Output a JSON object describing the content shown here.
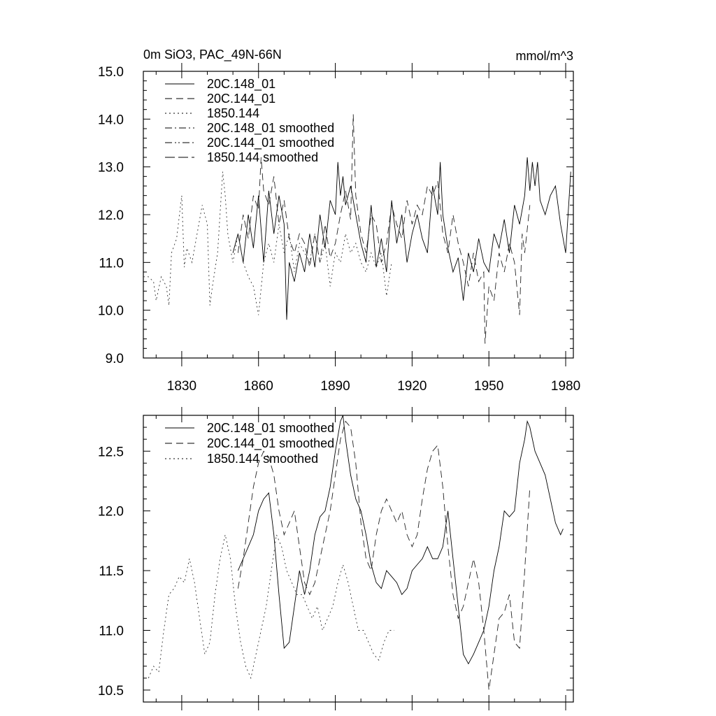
{
  "chart_data": [
    {
      "type": "line",
      "title": "0m SiO3, PAC_49N-66N",
      "units": "mmol/m^3",
      "xlim": [
        1815,
        1983
      ],
      "ylim": [
        9.0,
        15.0
      ],
      "x_ticks": [
        1830,
        1860,
        1890,
        1920,
        1950,
        1980
      ],
      "y_ticks": [
        9.0,
        10.0,
        11.0,
        12.0,
        13.0,
        14.0,
        15.0
      ],
      "y_tick_labels": [
        "9.0",
        "10.0",
        "11.0",
        "12.0",
        "13.0",
        "14.0",
        "15.0"
      ],
      "legend_position": "top-left",
      "series": [
        {
          "name": "20C.148_01",
          "style": "solid",
          "x": [
            1850,
            1852,
            1854,
            1856,
            1858,
            1860,
            1862,
            1864,
            1866,
            1868,
            1870,
            1871,
            1872,
            1874,
            1876,
            1878,
            1880,
            1882,
            1884,
            1886,
            1888,
            1890,
            1891,
            1892,
            1893,
            1894,
            1896,
            1898,
            1900,
            1902,
            1904,
            1906,
            1908,
            1910,
            1912,
            1914,
            1916,
            1918,
            1920,
            1922,
            1924,
            1926,
            1928,
            1930,
            1931,
            1932,
            1934,
            1936,
            1938,
            1940,
            1942,
            1944,
            1946,
            1948,
            1950,
            1952,
            1954,
            1956,
            1958,
            1960,
            1962,
            1964,
            1965,
            1966,
            1967,
            1968,
            1969,
            1970,
            1972,
            1974,
            1976,
            1978,
            1980,
            1982
          ],
          "values": [
            11.2,
            11.6,
            11.0,
            12.0,
            11.3,
            12.4,
            11.0,
            12.5,
            11.6,
            12.4,
            11.8,
            9.8,
            11.0,
            10.6,
            11.2,
            10.8,
            11.6,
            10.9,
            12.0,
            11.3,
            12.3,
            12.0,
            13.1,
            12.4,
            12.8,
            12.2,
            12.6,
            12.0,
            11.4,
            11.0,
            12.2,
            10.9,
            11.5,
            10.8,
            12.3,
            11.4,
            12.0,
            11.0,
            11.6,
            12.0,
            11.5,
            11.2,
            12.6,
            12.0,
            13.1,
            12.0,
            11.3,
            10.8,
            11.1,
            10.2,
            11.2,
            10.8,
            11.5,
            11.0,
            10.8,
            11.6,
            11.3,
            11.9,
            11.2,
            12.2,
            11.8,
            12.4,
            13.2,
            12.5,
            13.1,
            12.6,
            13.1,
            12.3,
            12.0,
            12.4,
            12.6,
            11.8,
            11.2,
            12.9
          ]
        },
        {
          "name": "20C.144_01",
          "style": "dashed",
          "x": [
            1852,
            1854,
            1856,
            1858,
            1860,
            1861,
            1862,
            1864,
            1866,
            1868,
            1870,
            1872,
            1874,
            1876,
            1878,
            1880,
            1882,
            1884,
            1886,
            1888,
            1890,
            1892,
            1894,
            1896,
            1897,
            1898,
            1900,
            1902,
            1904,
            1906,
            1908,
            1910,
            1912,
            1914,
            1916,
            1918,
            1920,
            1922,
            1924,
            1926,
            1928,
            1930,
            1932,
            1934,
            1936,
            1938,
            1940,
            1942,
            1944,
            1946,
            1948,
            1948.5,
            1950,
            1952,
            1954,
            1956,
            1958,
            1960,
            1962,
            1963,
            1964,
            1966
          ],
          "values": [
            11.2,
            12.0,
            11.5,
            12.4,
            12.1,
            13.2,
            12.5,
            12.2,
            12.8,
            11.8,
            12.3,
            11.5,
            11.2,
            11.6,
            11.4,
            10.9,
            11.6,
            11.0,
            11.8,
            11.1,
            11.4,
            12.0,
            12.5,
            11.9,
            14.1,
            12.4,
            11.6,
            11.2,
            12.0,
            11.8,
            11.0,
            11.4,
            12.2,
            11.8,
            11.5,
            12.3,
            11.8,
            12.2,
            12.0,
            12.6,
            12.4,
            12.7,
            11.6,
            11.2,
            12.0,
            11.4,
            11.0,
            10.5,
            11.2,
            10.6,
            10.8,
            9.3,
            10.5,
            10.2,
            11.2,
            10.8,
            11.4,
            11.0,
            9.9,
            11.6,
            11.2,
            12.2
          ]
        },
        {
          "name": "1850.144",
          "style": "dotted",
          "x": [
            1815,
            1817,
            1819,
            1820,
            1822,
            1824,
            1825,
            1826,
            1828,
            1830,
            1831,
            1832,
            1834,
            1836,
            1838,
            1840,
            1841,
            1842,
            1844,
            1846,
            1847,
            1848,
            1850,
            1852,
            1854,
            1856,
            1858,
            1860,
            1862,
            1864,
            1866,
            1868,
            1870,
            1872,
            1874,
            1876,
            1878,
            1880,
            1882,
            1884,
            1886,
            1888,
            1890,
            1892,
            1894,
            1896,
            1898,
            1900,
            1902,
            1904,
            1906,
            1908,
            1910,
            1912
          ],
          "values": [
            10.7,
            10.7,
            10.6,
            10.2,
            10.7,
            10.5,
            10.1,
            11.2,
            11.5,
            12.4,
            10.9,
            11.3,
            11.0,
            11.6,
            12.2,
            11.8,
            10.1,
            10.5,
            11.2,
            12.9,
            12.4,
            11.6,
            11.0,
            11.6,
            11.0,
            10.7,
            10.5,
            9.9,
            11.0,
            11.4,
            11.0,
            11.8,
            11.2,
            11.6,
            10.8,
            11.4,
            11.2,
            11.0,
            11.6,
            11.0,
            11.4,
            10.5,
            11.2,
            11.0,
            11.6,
            11.2,
            11.4,
            11.0,
            10.8,
            11.2,
            10.9,
            11.2,
            10.3,
            11.0
          ]
        }
      ],
      "legend": [
        {
          "label": "20C.148_01",
          "style": "solid"
        },
        {
          "label": "20C.144_01",
          "style": "dashed"
        },
        {
          "label": "1850.144",
          "style": "dotted"
        },
        {
          "label": "20C.148_01 smoothed",
          "style": "dashdot"
        },
        {
          "label": "20C.144_01 smoothed",
          "style": "dashdotdot"
        },
        {
          "label": "1850.144 smoothed",
          "style": "longdash"
        }
      ]
    },
    {
      "type": "line",
      "title": "",
      "xlim": [
        1815,
        1983
      ],
      "ylim": [
        10.4,
        12.8
      ],
      "x_ticks": [
        1830,
        1860,
        1890,
        1920,
        1950,
        1980
      ],
      "y_ticks": [
        10.5,
        11.0,
        11.5,
        12.0,
        12.5
      ],
      "y_tick_labels": [
        "10.5",
        "11.0",
        "11.5",
        "12.0",
        "12.5"
      ],
      "legend_position": "top-left",
      "series": [
        {
          "name": "20C.148_01 smoothed",
          "style": "solid",
          "x": [
            1852,
            1854,
            1856,
            1858,
            1860,
            1862,
            1864,
            1866,
            1868,
            1870,
            1872,
            1874,
            1876,
            1878,
            1880,
            1882,
            1884,
            1886,
            1888,
            1890,
            1892,
            1893,
            1894,
            1896,
            1898,
            1900,
            1902,
            1904,
            1906,
            1908,
            1910,
            1912,
            1914,
            1916,
            1918,
            1920,
            1922,
            1924,
            1926,
            1928,
            1930,
            1932,
            1934,
            1936,
            1938,
            1940,
            1942,
            1944,
            1946,
            1948,
            1950,
            1952,
            1954,
            1956,
            1958,
            1960,
            1962,
            1964,
            1965,
            1966,
            1968,
            1970,
            1972,
            1974,
            1976,
            1978,
            1979
          ],
          "values": [
            11.5,
            11.6,
            11.7,
            11.8,
            12.0,
            12.1,
            12.15,
            11.8,
            11.3,
            10.85,
            10.9,
            11.2,
            11.5,
            11.3,
            11.5,
            11.8,
            11.95,
            12.0,
            12.2,
            12.5,
            12.75,
            12.8,
            12.6,
            12.3,
            12.1,
            12.0,
            11.8,
            11.55,
            11.4,
            11.35,
            11.5,
            11.45,
            11.4,
            11.3,
            11.35,
            11.5,
            11.55,
            11.6,
            11.7,
            11.6,
            11.6,
            11.7,
            12.0,
            11.6,
            11.2,
            10.8,
            10.72,
            10.8,
            10.9,
            11.0,
            11.2,
            11.5,
            11.7,
            12.0,
            11.95,
            12.0,
            12.4,
            12.6,
            12.75,
            12.7,
            12.5,
            12.4,
            12.3,
            12.1,
            11.9,
            11.8,
            11.85
          ]
        },
        {
          "name": "20C.144_01 smoothed",
          "style": "dashed",
          "x": [
            1852,
            1854,
            1856,
            1858,
            1860,
            1862,
            1864,
            1866,
            1868,
            1870,
            1872,
            1874,
            1876,
            1878,
            1880,
            1882,
            1884,
            1886,
            1888,
            1890,
            1892,
            1894,
            1896,
            1898,
            1900,
            1902,
            1904,
            1906,
            1908,
            1910,
            1912,
            1914,
            1916,
            1918,
            1920,
            1922,
            1924,
            1926,
            1928,
            1930,
            1932,
            1934,
            1936,
            1938,
            1940,
            1942,
            1944,
            1946,
            1948,
            1950,
            1952,
            1954,
            1956,
            1958,
            1960,
            1962,
            1964,
            1966
          ],
          "values": [
            11.35,
            11.6,
            11.9,
            12.2,
            12.4,
            12.5,
            12.45,
            12.3,
            12.0,
            11.8,
            11.9,
            12.0,
            11.7,
            11.4,
            11.3,
            11.4,
            11.6,
            11.8,
            12.0,
            12.3,
            12.6,
            12.75,
            12.7,
            12.4,
            11.9,
            11.6,
            11.5,
            11.8,
            12.0,
            12.1,
            12.0,
            11.9,
            12.0,
            11.8,
            11.7,
            11.8,
            12.1,
            12.35,
            12.5,
            12.55,
            12.2,
            11.7,
            11.3,
            11.1,
            11.2,
            11.4,
            11.6,
            11.4,
            11.0,
            10.5,
            10.8,
            11.1,
            11.15,
            11.3,
            10.9,
            10.85,
            11.5,
            12.2
          ]
        },
        {
          "name": "1850.144 smoothed",
          "style": "dotted",
          "x": [
            1817,
            1819,
            1821,
            1823,
            1825,
            1827,
            1829,
            1831,
            1833,
            1835,
            1837,
            1839,
            1841,
            1843,
            1845,
            1847,
            1849,
            1851,
            1853,
            1855,
            1857,
            1859,
            1861,
            1863,
            1865,
            1867,
            1869,
            1871,
            1873,
            1875,
            1877,
            1879,
            1881,
            1883,
            1885,
            1887,
            1889,
            1891,
            1893,
            1895,
            1897,
            1899,
            1901,
            1903,
            1905,
            1907,
            1909,
            1911,
            1913
          ],
          "values": [
            10.6,
            10.7,
            10.65,
            11.0,
            11.3,
            11.35,
            11.45,
            11.4,
            11.6,
            11.4,
            11.1,
            10.8,
            10.9,
            11.3,
            11.6,
            11.8,
            11.6,
            11.2,
            10.9,
            10.7,
            10.6,
            10.8,
            11.0,
            11.2,
            11.5,
            11.8,
            11.7,
            11.5,
            11.4,
            11.3,
            11.3,
            11.2,
            11.1,
            11.2,
            11.0,
            11.1,
            11.2,
            11.4,
            11.55,
            11.4,
            11.2,
            11.0,
            11.0,
            10.9,
            10.8,
            10.75,
            10.9,
            11.0,
            11.0
          ]
        }
      ],
      "legend": [
        {
          "label": "20C.148_01 smoothed",
          "style": "solid"
        },
        {
          "label": "20C.144_01 smoothed",
          "style": "dashed"
        },
        {
          "label": "1850.144 smoothed",
          "style": "dotted"
        }
      ]
    }
  ]
}
